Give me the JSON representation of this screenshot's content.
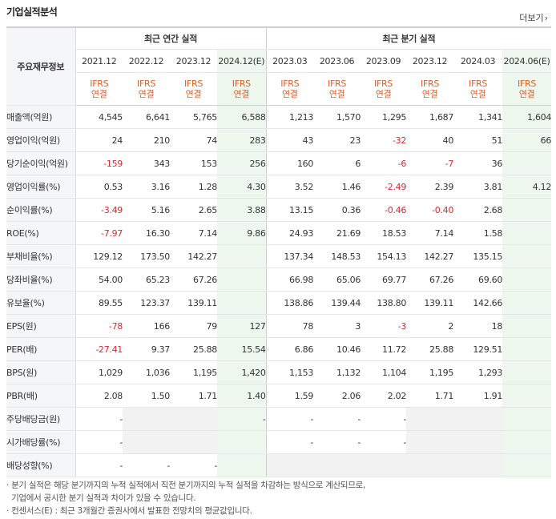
{
  "header": {
    "title": "기업실적분석",
    "more_label": "더보기"
  },
  "table": {
    "label_header": "주요재무정보",
    "groups": [
      "최근 연간 실적",
      "최근 분기 실적"
    ],
    "periods": [
      "2021.12",
      "2022.12",
      "2023.12",
      "2024.12(E)",
      "2023.03",
      "2023.06",
      "2023.09",
      "2023.12",
      "2024.03",
      "2024.06(E)"
    ],
    "standard_top": "IFRS",
    "standard_bottom": "연결",
    "rows": [
      {
        "label": "매출액(억원)",
        "values": [
          "4,545",
          "6,641",
          "5,765",
          "6,588",
          "1,213",
          "1,570",
          "1,295",
          "1,687",
          "1,341",
          "1,604"
        ]
      },
      {
        "label": "영업이익(억원)",
        "values": [
          "24",
          "210",
          "74",
          "283",
          "43",
          "23",
          "-32",
          "40",
          "51",
          "66"
        ]
      },
      {
        "label": "당기순이익(억원)",
        "values": [
          "-159",
          "343",
          "153",
          "256",
          "160",
          "6",
          "-6",
          "-7",
          "36",
          ""
        ]
      },
      {
        "label": "영업이익률(%)",
        "values": [
          "0.53",
          "3.16",
          "1.28",
          "4.30",
          "3.52",
          "1.46",
          "-2.49",
          "2.39",
          "3.81",
          "4.12"
        ]
      },
      {
        "label": "순이익률(%)",
        "values": [
          "-3.49",
          "5.16",
          "2.65",
          "3.88",
          "13.15",
          "0.36",
          "-0.46",
          "-0.40",
          "2.68",
          ""
        ]
      },
      {
        "label": "ROE(%)",
        "values": [
          "-7.97",
          "16.30",
          "7.14",
          "9.86",
          "24.93",
          "21.69",
          "18.53",
          "7.14",
          "1.58",
          ""
        ]
      },
      {
        "label": "부채비율(%)",
        "values": [
          "129.12",
          "173.50",
          "142.27",
          "",
          "137.34",
          "148.53",
          "154.13",
          "142.27",
          "135.15",
          ""
        ]
      },
      {
        "label": "당좌비율(%)",
        "values": [
          "54.00",
          "65.23",
          "67.26",
          "",
          "66.98",
          "65.06",
          "69.77",
          "67.26",
          "69.60",
          ""
        ]
      },
      {
        "label": "유보율(%)",
        "values": [
          "89.55",
          "123.37",
          "139.11",
          "",
          "138.86",
          "139.44",
          "138.80",
          "139.11",
          "142.66",
          ""
        ]
      },
      {
        "label": "EPS(원)",
        "values": [
          "-78",
          "166",
          "79",
          "127",
          "78",
          "3",
          "-3",
          "2",
          "18",
          ""
        ]
      },
      {
        "label": "PER(배)",
        "values": [
          "-27.41",
          "9.37",
          "25.88",
          "15.54",
          "6.86",
          "10.46",
          "11.72",
          "25.88",
          "129.51",
          ""
        ]
      },
      {
        "label": "BPS(원)",
        "values": [
          "1,029",
          "1,036",
          "1,195",
          "1,420",
          "1,153",
          "1,132",
          "1,104",
          "1,195",
          "1,293",
          ""
        ]
      },
      {
        "label": "PBR(배)",
        "values": [
          "2.08",
          "1.50",
          "1.71",
          "1.40",
          "1.59",
          "2.06",
          "2.02",
          "1.71",
          "1.91",
          ""
        ]
      },
      {
        "label": "주당배당금(원)",
        "values": [
          "-",
          "",
          "",
          "-",
          "-",
          "-",
          "-",
          "",
          "",
          ""
        ]
      },
      {
        "label": "시가배당률(%)",
        "values": [
          "-",
          "",
          "",
          "",
          "-",
          "-",
          "-",
          "",
          "",
          ""
        ]
      },
      {
        "label": "배당성향(%)",
        "values": [
          "-",
          "-",
          "-",
          "",
          "",
          "",
          "",
          "",
          "",
          ""
        ]
      }
    ]
  },
  "notes": [
    "· 분기 실적은 해당 분기까지의 누적 실적에서 직전 분기까지의 누적 실적을 차감하는 방식으로 계산되므로,",
    "  기업에서 공시한 분기 실적과 차이가 있을 수 있습니다.",
    "· 컨센서스(E) : 최근 3개월간 증권사에서 발표한 전망치의 평균값입니다."
  ],
  "colors": {
    "negative": "#e0272d",
    "ifrs": "#e25c26",
    "estimate_bg": "#eef7ee",
    "label_bg": "#f5f6f8"
  }
}
